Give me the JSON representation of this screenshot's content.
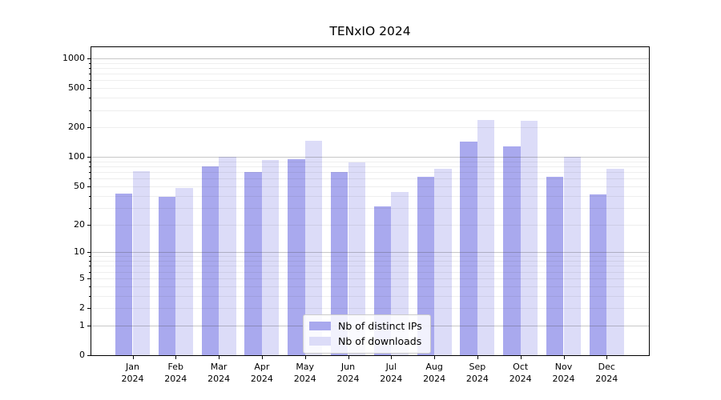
{
  "chart_data": {
    "type": "bar",
    "title": "TENxIO 2024",
    "categories": [
      "Jan",
      "Feb",
      "Mar",
      "Apr",
      "May",
      "Jun",
      "Jul",
      "Aug",
      "Sep",
      "Oct",
      "Nov",
      "Dec"
    ],
    "category_year": "2024",
    "series": [
      {
        "name": "Nb of distinct IPs",
        "color": "#a9a9ee",
        "values": [
          42,
          39,
          80,
          70,
          95,
          70,
          31,
          63,
          143,
          129,
          63,
          41
        ]
      },
      {
        "name": "Nb of downloads",
        "color": "#dcdcf8",
        "values": [
          71,
          48,
          100,
          93,
          145,
          88,
          44,
          76,
          240,
          232,
          100,
          75
        ]
      }
    ],
    "xlabel": "",
    "ylabel": "",
    "yscale": "log1p",
    "ylim": [
      0,
      1300
    ],
    "yticks": [
      0,
      1,
      2,
      5,
      10,
      20,
      50,
      100,
      200,
      500,
      1000
    ],
    "gridlines": {
      "major": [
        1,
        10,
        100,
        1000
      ],
      "minor": [
        2,
        3,
        4,
        5,
        6,
        7,
        8,
        9,
        20,
        30,
        40,
        50,
        60,
        70,
        80,
        90,
        200,
        300,
        400,
        500,
        600,
        700,
        800,
        900
      ]
    },
    "grid": true,
    "legend_position": "lower-center",
    "colors": {
      "major_grid": "rgba(70,70,70,0.30)",
      "minor_grid": "rgba(70,70,70,0.09)",
      "spine": "#000000",
      "text": "#000000"
    }
  }
}
